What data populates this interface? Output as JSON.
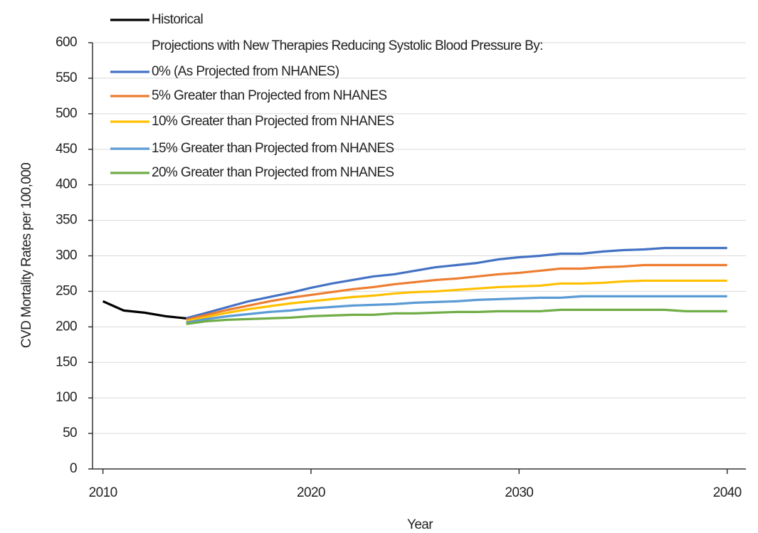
{
  "chart_data": {
    "type": "line",
    "x_label": "Year",
    "y_label": "CVD Mortality Rates per 100,000",
    "legend_title": "Projections with New Therapies Reducing Systolic Blood Pressure By:",
    "legend": "top-left",
    "grid": true,
    "xlim": [
      2009.5,
      2040.9
    ],
    "xticks": [
      2010,
      2020,
      2030,
      2040
    ],
    "ylim": [
      0,
      600
    ],
    "yticks": [
      0,
      50,
      100,
      150,
      200,
      250,
      300,
      350,
      400,
      450,
      500,
      550,
      600
    ],
    "series": [
      {
        "name": "Historical",
        "color": "#000000",
        "x": [
          2010,
          2011,
          2012,
          2013,
          2014
        ],
        "values": [
          236,
          223,
          220,
          215,
          212
        ]
      },
      {
        "name": "0% (As Projected from NHANES)",
        "color": "#4472c4",
        "x": [
          2014,
          2015,
          2016,
          2017,
          2018,
          2019,
          2020,
          2021,
          2022,
          2023,
          2024,
          2025,
          2026,
          2027,
          2028,
          2029,
          2030,
          2031,
          2032,
          2033,
          2034,
          2035,
          2036,
          2037,
          2038,
          2039,
          2040
        ],
        "values": [
          212,
          220,
          228,
          236,
          242,
          248,
          255,
          261,
          266,
          271,
          274,
          279,
          284,
          287,
          290,
          295,
          298,
          300,
          303,
          303,
          306,
          308,
          309,
          311,
          311,
          311,
          311
        ]
      },
      {
        "name": "5% Greater than Projected from NHANES",
        "color": "#ed7d31",
        "x": [
          2014,
          2015,
          2016,
          2017,
          2018,
          2019,
          2020,
          2021,
          2022,
          2023,
          2024,
          2025,
          2026,
          2027,
          2028,
          2029,
          2030,
          2031,
          2032,
          2033,
          2034,
          2035,
          2036,
          2037,
          2038,
          2039,
          2040
        ],
        "values": [
          210,
          217,
          224,
          230,
          236,
          241,
          245,
          249,
          253,
          256,
          260,
          263,
          266,
          268,
          271,
          274,
          276,
          279,
          282,
          282,
          284,
          285,
          287,
          287,
          287,
          287,
          287
        ]
      },
      {
        "name": "10% Greater than Projected from NHANES",
        "color": "#ffc000",
        "x": [
          2014,
          2015,
          2016,
          2017,
          2018,
          2019,
          2020,
          2021,
          2022,
          2023,
          2024,
          2025,
          2026,
          2027,
          2028,
          2029,
          2030,
          2031,
          2032,
          2033,
          2034,
          2035,
          2036,
          2037,
          2038,
          2039,
          2040
        ],
        "values": [
          208,
          214,
          220,
          225,
          229,
          233,
          236,
          239,
          242,
          244,
          247,
          249,
          250,
          252,
          254,
          256,
          257,
          258,
          261,
          261,
          262,
          264,
          265,
          265,
          265,
          265,
          265
        ]
      },
      {
        "name": "15% Greater than Projected from NHANES",
        "color": "#5b9bd5",
        "x": [
          2014,
          2015,
          2016,
          2017,
          2018,
          2019,
          2020,
          2021,
          2022,
          2023,
          2024,
          2025,
          2026,
          2027,
          2028,
          2029,
          2030,
          2031,
          2032,
          2033,
          2034,
          2035,
          2036,
          2037,
          2038,
          2039,
          2040
        ],
        "values": [
          206,
          211,
          215,
          218,
          221,
          223,
          226,
          228,
          230,
          231,
          232,
          234,
          235,
          236,
          238,
          239,
          240,
          241,
          241,
          243,
          243,
          243,
          243,
          243,
          243,
          243,
          243
        ]
      },
      {
        "name": "20% Greater than Projected from NHANES",
        "color": "#70ad47",
        "x": [
          2014,
          2015,
          2016,
          2017,
          2018,
          2019,
          2020,
          2021,
          2022,
          2023,
          2024,
          2025,
          2026,
          2027,
          2028,
          2029,
          2030,
          2031,
          2032,
          2033,
          2034,
          2035,
          2036,
          2037,
          2038,
          2039,
          2040
        ],
        "values": [
          204,
          208,
          210,
          211,
          212,
          213,
          215,
          216,
          217,
          217,
          219,
          219,
          220,
          221,
          221,
          222,
          222,
          222,
          224,
          224,
          224,
          224,
          224,
          224,
          222,
          222,
          222
        ]
      }
    ]
  }
}
